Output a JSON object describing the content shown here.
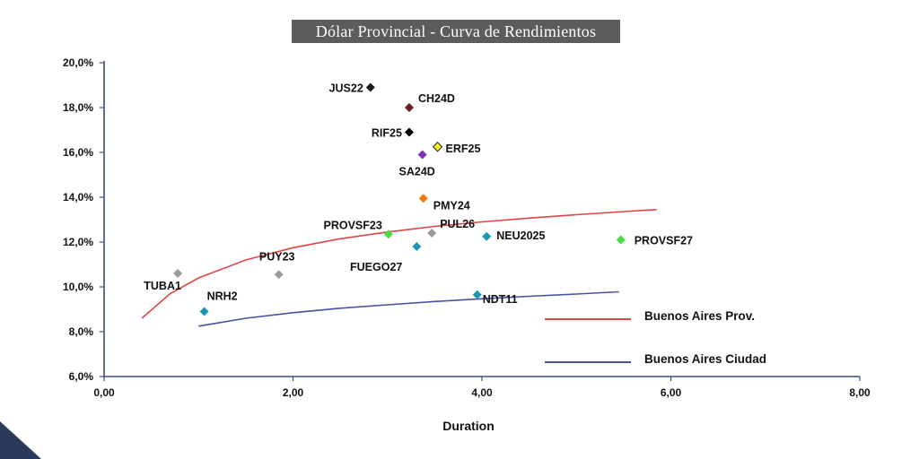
{
  "chart_data": {
    "type": "scatter",
    "title": "Dólar Provincial - Curva de Rendimientos",
    "xlabel": "Duration",
    "ylabel": "",
    "xlim": [
      0,
      8
    ],
    "ylim": [
      6,
      20
    ],
    "x_ticks": [
      "0,00",
      "2,00",
      "4,00",
      "6,00",
      "8,00"
    ],
    "y_ticks": [
      "6,0%",
      "8,0%",
      "10,0%",
      "12,0%",
      "14,0%",
      "16,0%",
      "18,0%",
      "20,0%"
    ],
    "grid": false,
    "legend_position": "bottom-right",
    "points": [
      {
        "label": "JUS22",
        "x": 2.82,
        "y": 18.9,
        "color": "#1a1a1a"
      },
      {
        "label": "CH24D",
        "x": 3.23,
        "y": 18.0,
        "color": "#6b1d24"
      },
      {
        "label": "RIF25",
        "x": 3.23,
        "y": 16.9,
        "color": "#000000"
      },
      {
        "label": "ERF25",
        "x": 3.53,
        "y": 16.25,
        "color": "#f2f21e"
      },
      {
        "label": "SA24D",
        "x": 3.37,
        "y": 15.9,
        "color": "#7e2fc0"
      },
      {
        "label": "PMY24",
        "x": 3.38,
        "y": 13.95,
        "color": "#ef7a10"
      },
      {
        "label": "PROVSF23",
        "x": 3.01,
        "y": 12.35,
        "color": "#3fe03f"
      },
      {
        "label": "PUL26",
        "x": 3.47,
        "y": 12.4,
        "color": "#9a9a9a"
      },
      {
        "label": "FUEGO27",
        "x": 3.31,
        "y": 11.8,
        "color": "#1c97b0"
      },
      {
        "label": "NEU2025",
        "x": 4.05,
        "y": 12.25,
        "color": "#1c97b0"
      },
      {
        "label": "PROVSF27",
        "x": 5.47,
        "y": 12.1,
        "color": "#3fe03f"
      },
      {
        "label": "PUY23",
        "x": 1.85,
        "y": 10.55,
        "color": "#9a9a9a"
      },
      {
        "label": "TUBA1",
        "x": 0.78,
        "y": 10.6,
        "color": "#9a9a9a"
      },
      {
        "label": "NRH2",
        "x": 1.06,
        "y": 8.9,
        "color": "#1c97b0"
      },
      {
        "label": "NDT11",
        "x": 3.95,
        "y": 9.65,
        "color": "#1c97b0"
      }
    ],
    "series": [
      {
        "name": "Buenos Aires Prov.",
        "color": "#e04545",
        "x": [
          0.4,
          0.7,
          1.0,
          1.5,
          2.0,
          2.5,
          3.0,
          3.5,
          4.0,
          4.5,
          5.0,
          5.5,
          5.85
        ],
        "y": [
          8.6,
          9.7,
          10.4,
          11.2,
          11.75,
          12.15,
          12.45,
          12.7,
          12.9,
          13.07,
          13.22,
          13.36,
          13.45
        ]
      },
      {
        "name": "Buenos Aires Ciudad",
        "color": "#4a52a0",
        "x": [
          1.0,
          1.5,
          2.0,
          2.5,
          3.0,
          3.5,
          4.0,
          4.5,
          5.0,
          5.45
        ],
        "y": [
          8.25,
          8.6,
          8.85,
          9.05,
          9.2,
          9.35,
          9.47,
          9.58,
          9.68,
          9.78
        ]
      }
    ]
  }
}
